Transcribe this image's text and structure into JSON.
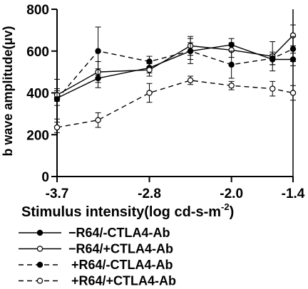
{
  "chart_data": {
    "type": "line",
    "xlabel": "Stimulus intensity(log cd-s-m",
    "xlabel_sup": "-2",
    "xlabel_end": ")",
    "ylabel": "b wave amplitude(μv)",
    "x_ticks": [
      "-3.7",
      "-2.8",
      "-2.0",
      "-1.4"
    ],
    "x_tick_values": [
      -3.7,
      -2.8,
      -2.0,
      -1.4
    ],
    "y_ticks": [
      "0",
      "200",
      "400",
      "600",
      "800"
    ],
    "y_tick_values": [
      0,
      200,
      400,
      600,
      800
    ],
    "xlim": [
      -3.7,
      -1.4
    ],
    "ylim": [
      0,
      800
    ],
    "x": [
      -3.7,
      -3.3,
      -2.8,
      -2.4,
      -2.0,
      -1.6,
      -1.4
    ],
    "legend_position": "bottom",
    "series": [
      {
        "name": "−R64/-CTLA4-Ab",
        "line": "solid",
        "marker": "filled",
        "values": [
          375,
          470,
          520,
          600,
          630,
          560,
          560
        ],
        "errors": [
          35,
          45,
          25,
          40,
          30,
          25,
          30
        ]
      },
      {
        "name": "−R64/+CTLA4-Ab",
        "line": "solid",
        "marker": "open",
        "values": [
          390,
          500,
          510,
          625,
          605,
          575,
          675
        ],
        "errors": [
          30,
          50,
          30,
          45,
          35,
          70,
          50
        ]
      },
      {
        "name": "+R64/-CTLA4-Ab",
        "line": "dashed",
        "marker": "filled",
        "values": [
          370,
          600,
          550,
          600,
          535,
          565,
          610
        ],
        "errors": [
          95,
          115,
          25,
          60,
          65,
          30,
          60
        ]
      },
      {
        "name": "+R64/+CTLA4-Ab",
        "line": "dashed",
        "marker": "open",
        "values": [
          235,
          270,
          400,
          460,
          435,
          420,
          400
        ],
        "errors": [
          25,
          35,
          45,
          20,
          20,
          35,
          35
        ]
      }
    ]
  }
}
